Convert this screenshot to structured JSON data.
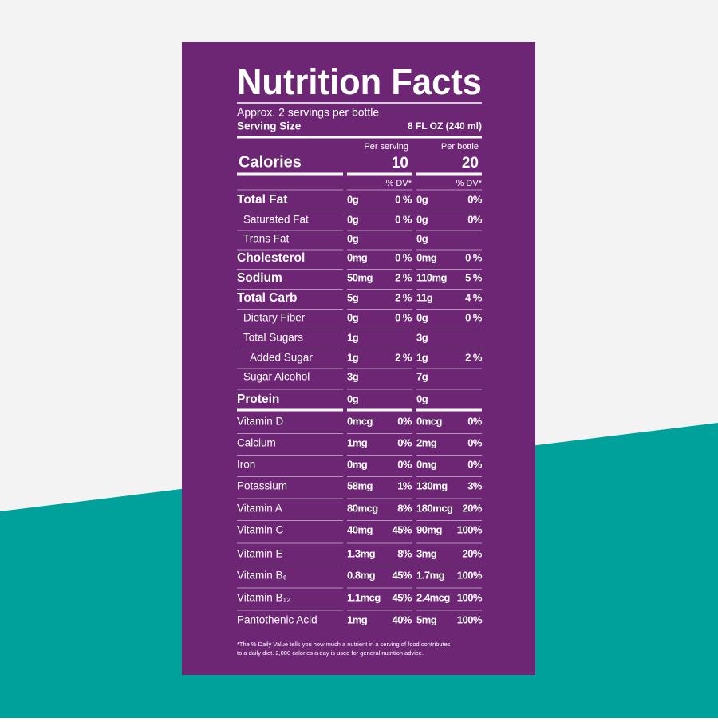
{
  "title": "Nutrition Facts",
  "servings": "Approx. 2 servings per bottle",
  "serving_size_label": "Serving Size",
  "serving_size": "8 FL OZ (240 ml)",
  "calories": {
    "label": "Calories",
    "per_serving_label": "Per serving",
    "per_serving": 10,
    "per_bottle_label": "Per bottle",
    "per_bottle": 20
  },
  "dv_headers": [
    "% DV*",
    "% DV*"
  ],
  "rows": [
    [
      "Total Fat",
      "0g",
      "0 %",
      "0g",
      "0%"
    ],
    [
      "Saturated Fat",
      "0g",
      "0 %",
      "0g",
      "0%"
    ],
    [
      "Trans Fat",
      "0g",
      null,
      "0g",
      null
    ],
    [
      "Cholesterol",
      "0mg",
      "0 %",
      "0mg",
      "0 %"
    ],
    [
      "Sodium",
      "50mg",
      "2 %",
      "110mg",
      "5 %"
    ],
    [
      "Total Carb",
      "5g",
      "2 %",
      "11g",
      "4 %"
    ],
    [
      "Dietary Fiber",
      "0g",
      "0 %",
      "0g",
      "0 %"
    ],
    [
      "Total Sugars",
      "1g",
      null,
      "3g",
      null
    ],
    [
      "Added Sugar",
      "1g",
      "2 %",
      "1g",
      "2 %"
    ],
    [
      "Sugar Alcohol",
      "3g",
      null,
      "7g",
      null
    ],
    [
      "Protein",
      "0g",
      null,
      "0g",
      null
    ],
    [
      "Vitamin D",
      "0mcg",
      "0%",
      "0mcg",
      "0%"
    ],
    [
      "Calcium",
      "1mg",
      "0%",
      "2mg",
      "0%"
    ],
    [
      "Iron",
      "0mg",
      "0%",
      "0mg",
      "0%"
    ],
    [
      "Potassium",
      "58mg",
      "1%",
      "130mg",
      "3%"
    ],
    [
      "Vitamin A",
      "80mcg",
      "8%",
      "180mcg",
      "20%"
    ],
    [
      "Vitamin C",
      "40mg",
      "45%",
      "90mg",
      "100%"
    ],
    [
      "Vitamin E",
      "1.3mg",
      "8%",
      "3mg",
      "20%"
    ],
    [
      "Vitamin B₆",
      "0.8mg",
      "45%",
      "1.7mg",
      "100%"
    ],
    [
      "Vitamin B₁₂",
      "1.1mcg",
      "45%",
      "2.4mcg",
      "100%"
    ],
    [
      "Pantothenic Acid",
      "1mg",
      "40%",
      "5mg",
      "100%"
    ]
  ],
  "footnote": [
    "*The % Daily Value tells you how much a nutrient in a serving of food contributes",
    "to a daily diet. 2,000 calories a day is used for general nutrition advice."
  ]
}
